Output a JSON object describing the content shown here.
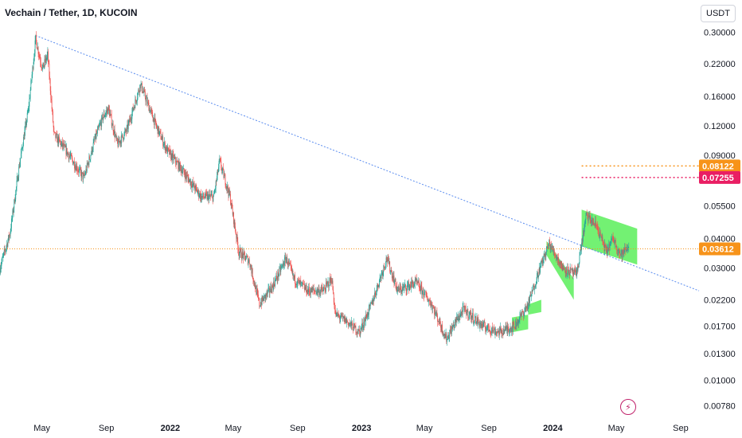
{
  "header": {
    "title": "Vechain / Tether, 1D, KUCOIN"
  },
  "currency_button": {
    "label": "USDT"
  },
  "colors": {
    "up": "#26a69a",
    "down": "#ef5350",
    "trendline": "#5b8def",
    "channel": "#00e600",
    "current": "#f7931a",
    "level_orange": "#f7931a",
    "level_red": "#e91e63"
  },
  "logo": {
    "icon": "lightning-icon"
  },
  "chart_data": {
    "type": "candlestick",
    "scale": "log",
    "ylim": [
      0.0072,
      0.33
    ],
    "x_range": [
      "2021-02-10",
      "2024-10-06"
    ],
    "y_ticks": [
      "0.30000",
      "0.22000",
      "0.16000",
      "0.12000",
      "0.09000",
      "0.05500",
      "0.04000",
      "0.03000",
      "0.02200",
      "0.01700",
      "0.01300",
      "0.01000",
      "0.00780"
    ],
    "x_ticks": [
      {
        "label": "May",
        "date": "2021-05-01"
      },
      {
        "label": "Sep",
        "date": "2021-09-01"
      },
      {
        "label": "2022",
        "date": "2022-01-01"
      },
      {
        "label": "May",
        "date": "2022-05-01"
      },
      {
        "label": "Sep",
        "date": "2022-09-01"
      },
      {
        "label": "2023",
        "date": "2023-01-01"
      },
      {
        "label": "May",
        "date": "2023-05-01"
      },
      {
        "label": "Sep",
        "date": "2023-09-01"
      },
      {
        "label": "2024",
        "date": "2024-01-01"
      },
      {
        "label": "May",
        "date": "2024-05-01"
      },
      {
        "label": "Sep",
        "date": "2024-09-01"
      }
    ],
    "price_path": [
      [
        "2021-02-10",
        0.03
      ],
      [
        "2021-03-01",
        0.042
      ],
      [
        "2021-03-20",
        0.085
      ],
      [
        "2021-04-05",
        0.14
      ],
      [
        "2021-04-19",
        0.28
      ],
      [
        "2021-05-02",
        0.21
      ],
      [
        "2021-05-12",
        0.24
      ],
      [
        "2021-05-24",
        0.11
      ],
      [
        "2021-06-15",
        0.095
      ],
      [
        "2021-07-20",
        0.072
      ],
      [
        "2021-08-10",
        0.105
      ],
      [
        "2021-08-25",
        0.13
      ],
      [
        "2021-09-05",
        0.142
      ],
      [
        "2021-09-22",
        0.1
      ],
      [
        "2021-10-10",
        0.115
      ],
      [
        "2021-11-05",
        0.18
      ],
      [
        "2021-12-05",
        0.12
      ],
      [
        "2021-12-25",
        0.095
      ],
      [
        "2022-01-20",
        0.08
      ],
      [
        "2022-03-01",
        0.06
      ],
      [
        "2022-03-25",
        0.06
      ],
      [
        "2022-04-05",
        0.085
      ],
      [
        "2022-04-25",
        0.06
      ],
      [
        "2022-05-12",
        0.035
      ],
      [
        "2022-06-01",
        0.032
      ],
      [
        "2022-06-20",
        0.021
      ],
      [
        "2022-07-15",
        0.025
      ],
      [
        "2022-08-10",
        0.033
      ],
      [
        "2022-08-25",
        0.027
      ],
      [
        "2022-09-20",
        0.024
      ],
      [
        "2022-10-20",
        0.024
      ],
      [
        "2022-11-05",
        0.027
      ],
      [
        "2022-11-12",
        0.019
      ],
      [
        "2022-12-01",
        0.018
      ],
      [
        "2022-12-28",
        0.016
      ],
      [
        "2023-01-20",
        0.021
      ],
      [
        "2023-02-18",
        0.033
      ],
      [
        "2023-03-11",
        0.024
      ],
      [
        "2023-04-15",
        0.026
      ],
      [
        "2023-05-15",
        0.021
      ],
      [
        "2023-06-12",
        0.015
      ],
      [
        "2023-07-01",
        0.018
      ],
      [
        "2023-07-15",
        0.02
      ],
      [
        "2023-08-20",
        0.017
      ],
      [
        "2023-09-20",
        0.016
      ],
      [
        "2023-10-20",
        0.017
      ],
      [
        "2023-11-15",
        0.021
      ],
      [
        "2023-12-05",
        0.029
      ],
      [
        "2023-12-25",
        0.038
      ],
      [
        "2024-01-20",
        0.03
      ],
      [
        "2024-02-15",
        0.028
      ],
      [
        "2024-03-05",
        0.05
      ],
      [
        "2024-03-25",
        0.045
      ],
      [
        "2024-04-12",
        0.035
      ],
      [
        "2024-04-25",
        0.04
      ],
      [
        "2024-05-10",
        0.034
      ],
      [
        "2024-05-25",
        0.037
      ]
    ],
    "trendline": {
      "start": [
        "2021-04-19",
        0.29
      ],
      "end": [
        "2024-10-06",
        0.024
      ]
    },
    "channels": [
      {
        "from": "2023-10-15",
        "to": "2023-11-15",
        "top": [
          0.0185,
          0.019
        ],
        "bottom": [
          0.016,
          0.0165
        ]
      },
      {
        "from": "2023-11-15",
        "to": "2023-12-10",
        "top": [
          0.021,
          0.022
        ],
        "bottom": [
          0.019,
          0.0195
        ]
      },
      {
        "from": "2023-12-20",
        "to": "2024-02-10",
        "top": [
          0.039,
          0.027
        ],
        "bottom": [
          0.034,
          0.022
        ]
      },
      {
        "from": "2024-02-25",
        "to": "2024-06-10",
        "top": [
          0.053,
          0.044
        ],
        "bottom": [
          0.037,
          0.031
        ]
      }
    ],
    "levels": [
      {
        "value": 0.08122,
        "label": "0.08122",
        "color": "level_orange",
        "from": "2024-02-25"
      },
      {
        "value": 0.07255,
        "label": "0.07255",
        "color": "level_red",
        "from": "2024-02-25"
      }
    ],
    "current_price": {
      "value": 0.03612,
      "label": "0.03612"
    }
  }
}
